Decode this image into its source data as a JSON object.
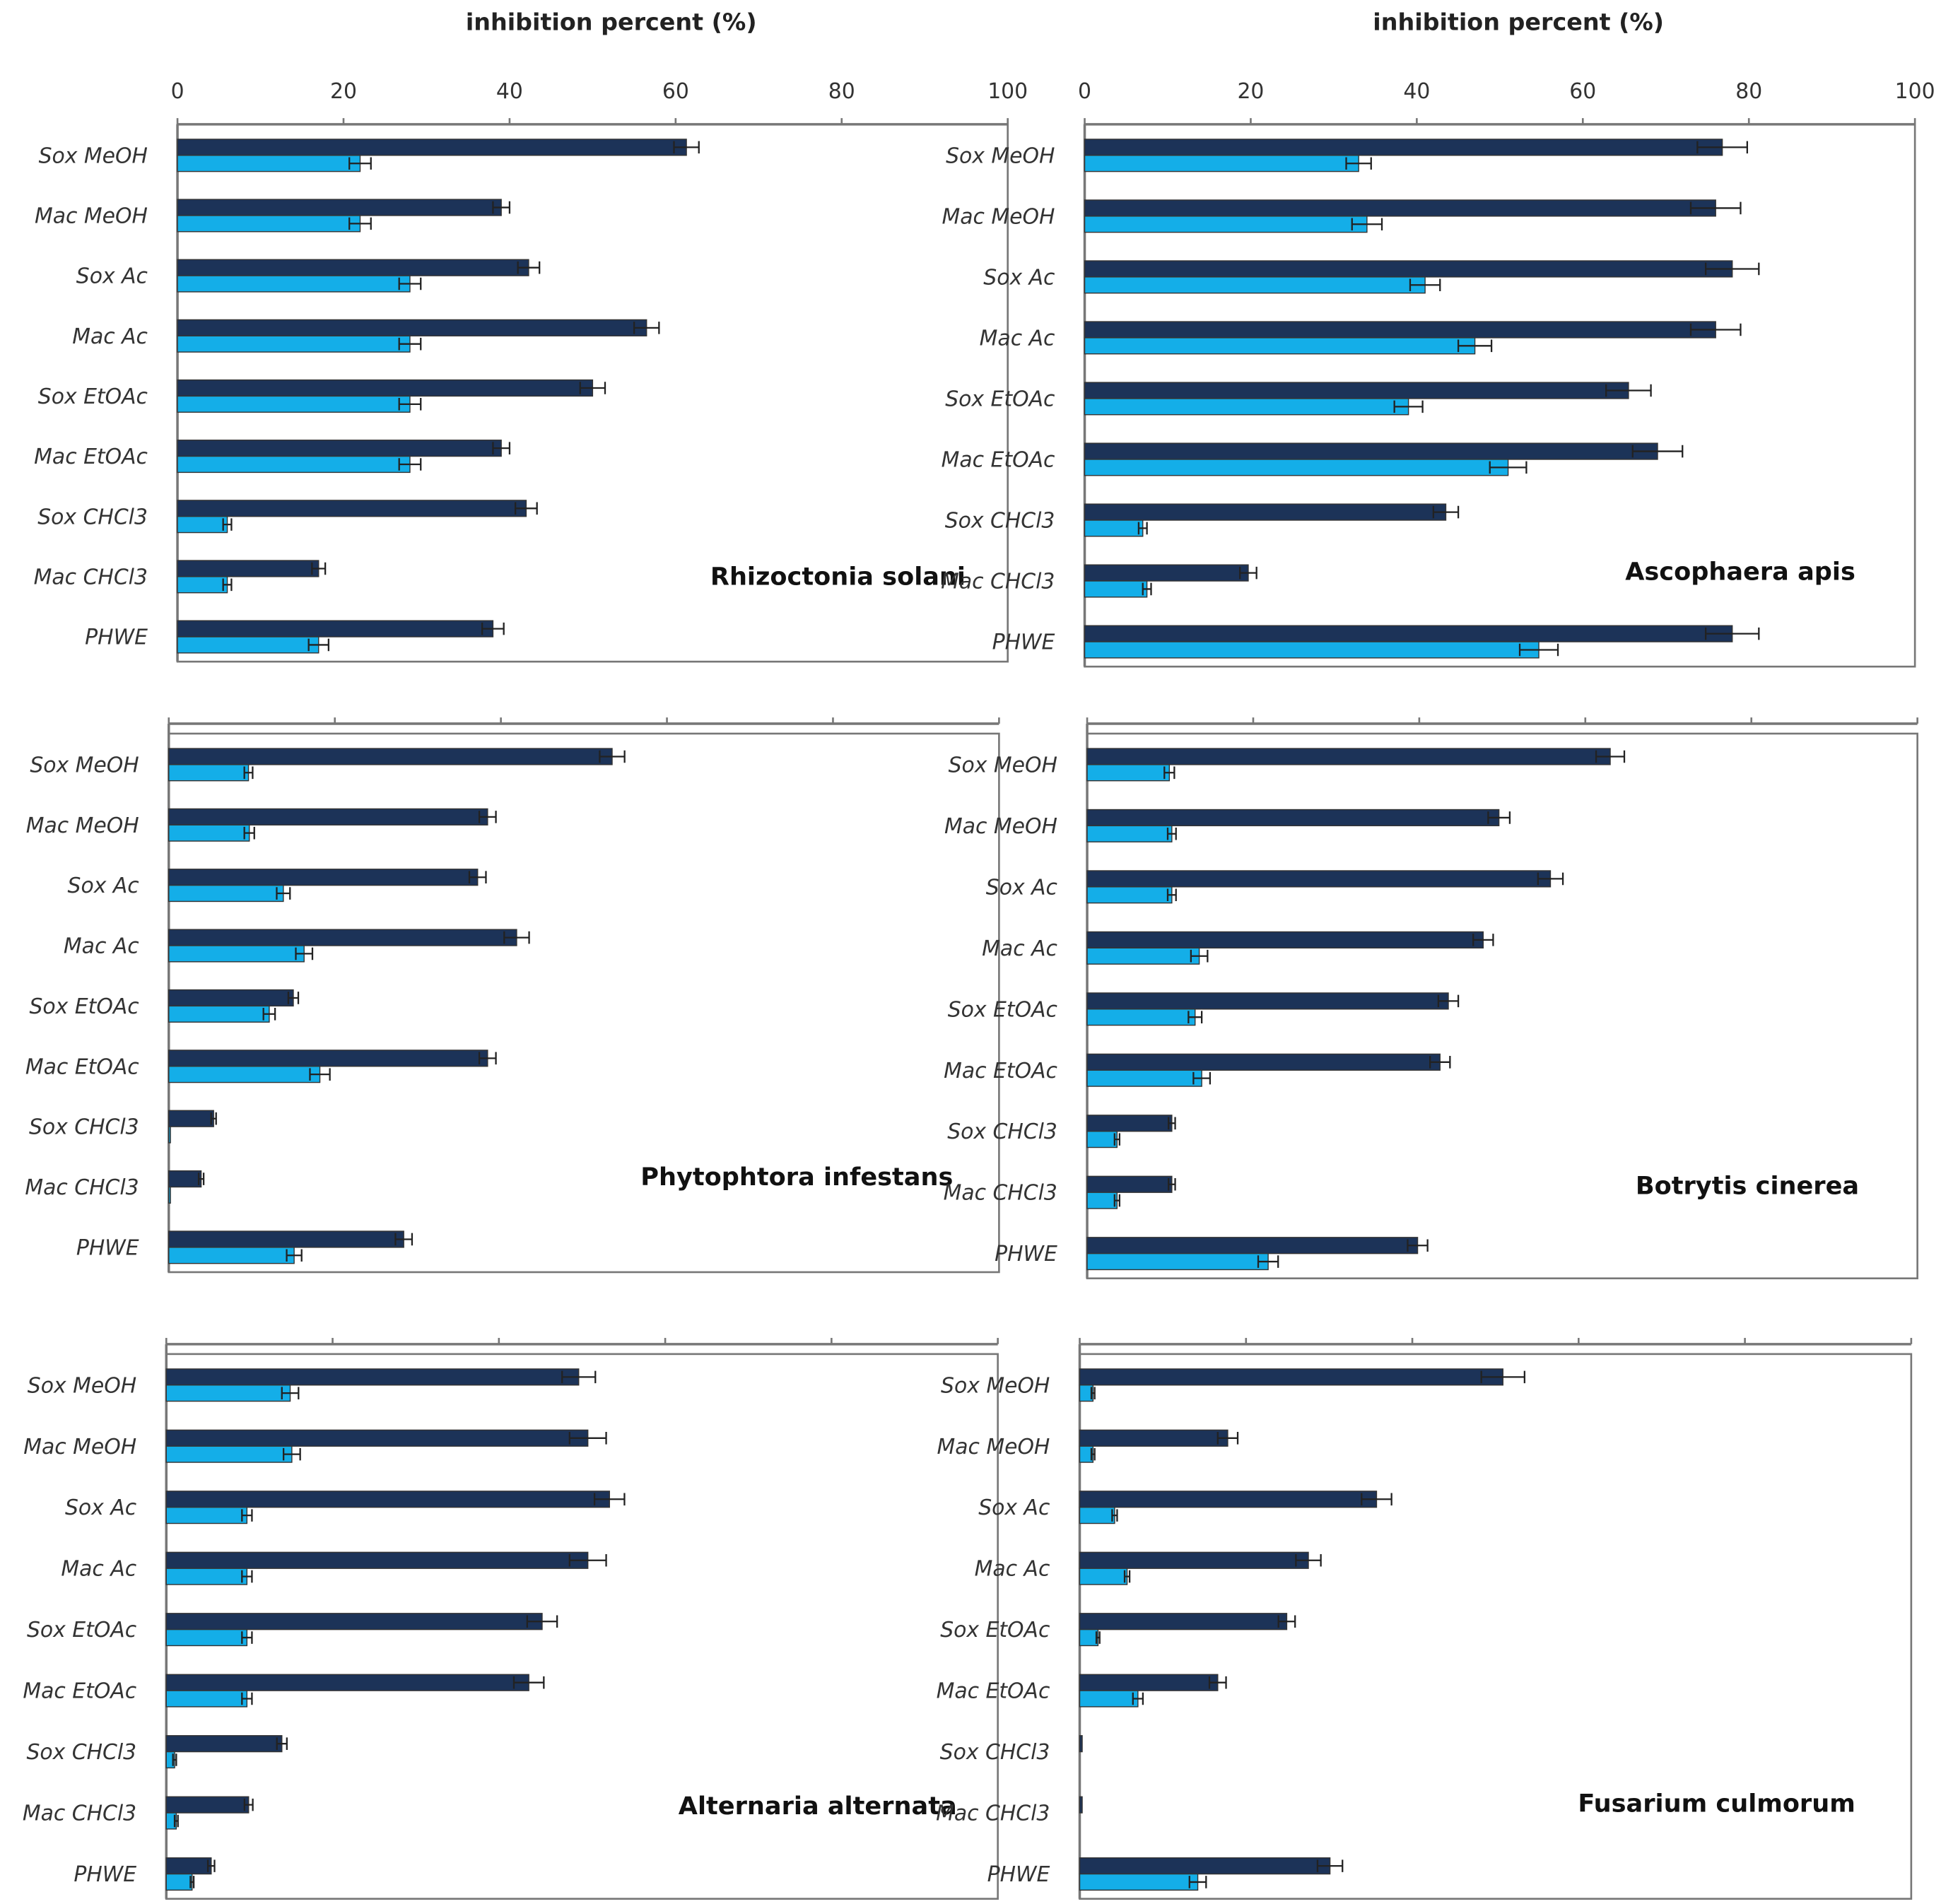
{
  "chart_data": {
    "type": "bar",
    "orientation": "horizontal",
    "xlabel": "inhibition percent (%)",
    "xlim": [
      0,
      100
    ],
    "xticks": [
      "0",
      "20",
      "40",
      "60",
      "80",
      "100"
    ],
    "categories": [
      "Sox MeOH",
      "Mac MeOH",
      "Sox Ac",
      "Mac Ac",
      "Sox EtOAc",
      "Mac EtOAc",
      "Sox CHCl3",
      "Mac CHCl3",
      "PHWE"
    ],
    "colors": {
      "dark": "#1c3358",
      "light": "#14aee8"
    },
    "panels": [
      {
        "title": "Rhizoctonia solani",
        "show_tick_labels": true,
        "show_xlabel": true,
        "dark": [
          61.3,
          39,
          42.3,
          56.5,
          50,
          39,
          42,
          17,
          38
        ],
        "dark_err": [
          1.5,
          1,
          1.3,
          1.5,
          1.5,
          1,
          1.3,
          0.8,
          1.3
        ],
        "light": [
          22,
          22,
          28,
          28,
          28,
          28,
          6,
          6,
          17
        ],
        "light_err": [
          1.3,
          1.3,
          1.3,
          1.3,
          1.3,
          1.3,
          0.5,
          0.5,
          1.2
        ]
      },
      {
        "title": "Ascophaera apis",
        "show_tick_labels": true,
        "show_xlabel": true,
        "dark": [
          76.8,
          76,
          78,
          76,
          65.5,
          69,
          43.5,
          19.7,
          78
        ],
        "dark_err": [
          3,
          3,
          3.2,
          3,
          2.7,
          3,
          1.5,
          1,
          3.2
        ],
        "light": [
          33,
          34,
          41,
          47,
          39,
          51,
          7,
          7.5,
          54.7
        ],
        "light_err": [
          1.5,
          1.8,
          1.8,
          2,
          1.7,
          2.2,
          0.5,
          0.5,
          2.3
        ]
      },
      {
        "title": "Phytophtora  infestans",
        "show_tick_labels": false,
        "show_xlabel": false,
        "dark": [
          53.4,
          38.4,
          37.2,
          41.9,
          15,
          38.4,
          5.4,
          3.9,
          28.3
        ],
        "dark_err": [
          1.5,
          1,
          1,
          1.5,
          0.6,
          1,
          0.3,
          0.3,
          1
        ],
        "light": [
          9.6,
          9.7,
          13.8,
          16.3,
          12.1,
          18.2,
          0.2,
          0.2,
          15.1
        ],
        "light_err": [
          0.5,
          0.6,
          0.8,
          1,
          0.7,
          1.2,
          0,
          0,
          0.9
        ]
      },
      {
        "title": "Botrytis cinerea",
        "show_tick_labels": false,
        "show_xlabel": false,
        "dark": [
          63,
          49.6,
          55.8,
          47.7,
          43.5,
          42.5,
          10.2,
          10.2,
          39.8
        ],
        "dark_err": [
          1.7,
          1.3,
          1.5,
          1.2,
          1.2,
          1.2,
          0.4,
          0.4,
          1.2
        ],
        "light": [
          9.9,
          10.2,
          10.2,
          13.5,
          13,
          13.8,
          3.6,
          3.6,
          21.8
        ],
        "light_err": [
          0.6,
          0.5,
          0.5,
          1,
          0.8,
          1,
          0.3,
          0.3,
          1.2
        ]
      },
      {
        "title": "Alternaria alternata",
        "show_tick_labels": false,
        "show_xlabel": false,
        "dark": [
          49.6,
          50.7,
          53.3,
          50.7,
          45.2,
          43.6,
          13.9,
          9.9,
          5.4
        ],
        "dark_err": [
          2,
          2.2,
          1.8,
          2.2,
          1.8,
          1.8,
          0.6,
          0.5,
          0.4
        ],
        "light": [
          14.9,
          15.1,
          9.7,
          9.7,
          9.7,
          9.7,
          1,
          1.2,
          3.1
        ],
        "light_err": [
          1,
          1,
          0.6,
          0.6,
          0.6,
          0.6,
          0.2,
          0.2,
          0.2
        ]
      },
      {
        "title": "Fusarium culmorum",
        "show_tick_labels": false,
        "show_xlabel": false,
        "dark": [
          50.9,
          17.8,
          35.7,
          27.5,
          24.9,
          16.6,
          0.3,
          0.3,
          30.1
        ],
        "dark_err": [
          2.6,
          1.2,
          1.8,
          1.5,
          1,
          1,
          0,
          0,
          1.5
        ],
        "light": [
          1.6,
          1.6,
          4.2,
          5.7,
          2.2,
          7,
          0,
          0,
          14.2
        ],
        "light_err": [
          0.2,
          0.2,
          0.3,
          0.3,
          0.2,
          0.6,
          0,
          0,
          1
        ]
      }
    ]
  }
}
